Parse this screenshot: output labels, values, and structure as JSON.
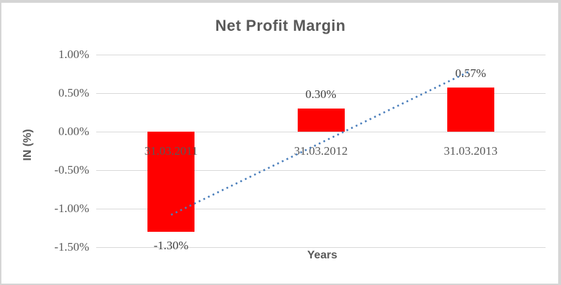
{
  "chart_data": {
    "type": "bar",
    "title": "Net Profit Margin",
    "xlabel": "Years",
    "ylabel": "IN (%)",
    "categories": [
      "31.03.2011",
      "31.03.2012",
      "31.03.2013"
    ],
    "values": [
      -1.3,
      0.3,
      0.57
    ],
    "data_labels": [
      "-1.30%",
      "0.30%",
      "0.57%"
    ],
    "y_ticks": [
      {
        "label": "1.00%",
        "value": 1.0
      },
      {
        "label": "0.50%",
        "value": 0.5
      },
      {
        "label": "0.00%",
        "value": 0.0
      },
      {
        "label": "-0.50%",
        "value": -0.5
      },
      {
        "label": "-1.00%",
        "value": -1.0
      },
      {
        "label": "-1.50%",
        "value": -1.5
      }
    ],
    "ylim": [
      -1.5,
      1.0
    ],
    "grid": true,
    "legend": false,
    "colors": {
      "bar": "#ff0000",
      "gridline": "#d9d9d9",
      "axis_text": "#595959",
      "data_label_text": "#404040",
      "title_text": "#595959",
      "frame_border": "#d5d5d5"
    },
    "trendline": {
      "type": "linear",
      "style": "dotted",
      "color": "#4a7ebb",
      "start_value": -1.08,
      "end_value": 0.79
    }
  }
}
